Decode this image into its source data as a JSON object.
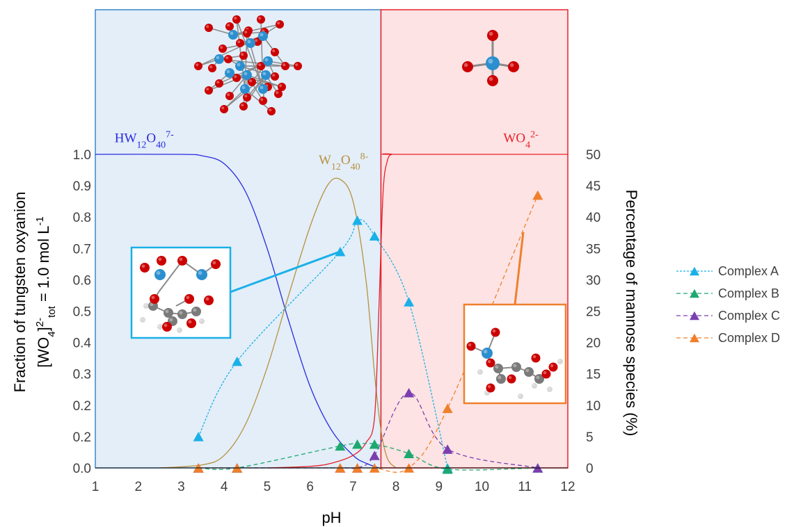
{
  "chart_data": {
    "type": "line",
    "x_axis": {
      "label": "pH",
      "range": [
        1,
        12
      ],
      "ticks": [
        1,
        2,
        3,
        4,
        5,
        6,
        7,
        8,
        9,
        10,
        11,
        12
      ]
    },
    "y_left": {
      "label_line1": "Fraction of tungsten oxyanion",
      "label_line2_prefix": "[WO",
      "label_line2_sub1": "4",
      "label_line2_mid": "]",
      "label_line2_sup": "2-",
      "label_line2_sub2": "tot",
      "label_line2_suffix": " = 1.0 mol L",
      "label_line2_unit_sup": "-1",
      "range": [
        0,
        1.0
      ],
      "tick_labels": [
        "0.0",
        "0.2",
        "0.2",
        "0.3",
        "0.4",
        "0.5",
        "0.6",
        "0.7",
        "0.8",
        "0.9",
        "1.0"
      ]
    },
    "y_right": {
      "label": "Percentage of mannose species (%)",
      "range": [
        0,
        50
      ],
      "ticks": [
        0,
        5,
        10,
        15,
        20,
        25,
        30,
        35,
        40,
        45,
        50
      ]
    },
    "regions": [
      {
        "from": 1,
        "to": 7.65,
        "fill": "#e3eef8",
        "stroke": "#3a86c8"
      },
      {
        "from": 7.65,
        "to": 12,
        "fill": "#fde3e3",
        "stroke": "#e8202a"
      }
    ],
    "species_curves": [
      {
        "label_main": "HW",
        "label_sub": "12",
        "label_o": "O",
        "label_sub2": "40",
        "label_sup": "7-",
        "color": "#2a2ae0",
        "label_at": [
          1.45,
          1.03
        ],
        "x": [
          1.0,
          3.0,
          3.5,
          4.0,
          4.5,
          5.0,
          5.5,
          6.0,
          6.5,
          7.0,
          7.3,
          7.6
        ],
        "y": [
          1.0,
          1.0,
          0.995,
          0.97,
          0.88,
          0.7,
          0.47,
          0.26,
          0.12,
          0.04,
          0.015,
          0.0
        ]
      },
      {
        "label_main": "W",
        "label_sub": "12",
        "label_o": "O",
        "label_sub2": "40",
        "label_sup": "8-",
        "color": "#b89040",
        "label_at": [
          6.2,
          0.96
        ],
        "x": [
          2.5,
          3.5,
          4.0,
          4.5,
          5.0,
          5.5,
          6.0,
          6.4,
          6.7,
          7.0,
          7.3,
          7.5,
          7.65,
          7.8,
          8.0
        ],
        "y": [
          0.0,
          0.01,
          0.04,
          0.14,
          0.32,
          0.55,
          0.77,
          0.9,
          0.92,
          0.85,
          0.6,
          0.3,
          0.12,
          0.03,
          0.0
        ]
      },
      {
        "label_main": "WO",
        "label_sub": "4",
        "label_o": "",
        "label_sub2": "",
        "label_sup": "2-",
        "color": "#e8202a",
        "label_at": [
          10.5,
          1.03
        ],
        "x": [
          5.0,
          6.0,
          6.5,
          7.0,
          7.3,
          7.5,
          7.6,
          7.7,
          7.8,
          7.9,
          8.0,
          12.0
        ],
        "y": [
          0.0,
          0.005,
          0.015,
          0.04,
          0.08,
          0.16,
          0.5,
          0.88,
          0.98,
          1.0,
          1.0,
          1.0
        ]
      }
    ],
    "series": [
      {
        "name": "Complex A",
        "color": "#1ab0e8",
        "x": [
          3.4,
          4.3,
          6.7,
          7.1,
          7.5,
          8.3,
          9.2
        ],
        "y": [
          5,
          17,
          34.5,
          39.5,
          37,
          26.5,
          0
        ]
      },
      {
        "name": "Complex B",
        "color": "#1ea870",
        "x": [
          3.4,
          4.3,
          6.7,
          7.1,
          7.5,
          8.3,
          9.2,
          11.3
        ],
        "y": [
          0,
          0,
          3.5,
          3.8,
          3.8,
          2.3,
          -0.2,
          0
        ]
      },
      {
        "name": "Complex C",
        "color": "#7b3fb0",
        "x": [
          3.4,
          4.3,
          6.7,
          7.1,
          7.5,
          8.3,
          9.2,
          11.3
        ],
        "y": [
          0,
          0,
          0,
          0,
          2,
          12,
          3,
          0
        ]
      },
      {
        "name": "Complex D",
        "color": "#f07f2c",
        "x": [
          3.4,
          4.3,
          6.7,
          7.1,
          7.5,
          8.3,
          9.2,
          11.3
        ],
        "y": [
          0,
          0,
          0,
          0,
          0,
          0,
          9.5,
          43.5
        ]
      }
    ],
    "legend_position": "right",
    "insets": [
      {
        "name": "complex-a-structure",
        "border": "#1ab0e8"
      },
      {
        "name": "complex-d-structure",
        "border": "#f07f2c"
      }
    ]
  }
}
